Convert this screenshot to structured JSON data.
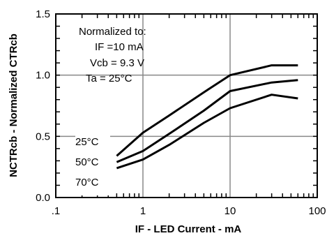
{
  "chart_data": {
    "type": "line",
    "x_scale": "log",
    "xlim": [
      0.1,
      100
    ],
    "ylim": [
      0,
      1.5
    ],
    "grid": true,
    "xlabel": "IF - LED Current - mA",
    "ylabel": "NCTRcb - Normalized CTRcb",
    "x_ticks": [
      {
        "value": 0.1,
        "label": ".1"
      },
      {
        "value": 1,
        "label": "1"
      },
      {
        "value": 10,
        "label": "10"
      },
      {
        "value": 100,
        "label": "100"
      }
    ],
    "y_ticks": [
      {
        "value": 0.0,
        "label": "0.0"
      },
      {
        "value": 0.5,
        "label": "0.5"
      },
      {
        "value": 1.0,
        "label": "1.0"
      },
      {
        "value": 1.5,
        "label": "1.5"
      }
    ],
    "annotation_lines": [
      "Normalized to:",
      "IF =10 mA",
      "Vcb = 9.3 V",
      "Ta = 25°C"
    ],
    "series": [
      {
        "name": "25°C",
        "x": [
          0.5,
          1,
          2,
          5,
          10,
          30,
          60
        ],
        "y": [
          0.34,
          0.53,
          0.67,
          0.86,
          1.0,
          1.08,
          1.08
        ]
      },
      {
        "name": "50°C",
        "x": [
          0.5,
          1,
          2,
          5,
          10,
          30,
          60
        ],
        "y": [
          0.29,
          0.38,
          0.52,
          0.71,
          0.87,
          0.94,
          0.96
        ]
      },
      {
        "name": "70°C",
        "x": [
          0.5,
          1,
          2,
          5,
          10,
          30,
          60
        ],
        "y": [
          0.24,
          0.31,
          0.43,
          0.61,
          0.73,
          0.84,
          0.81
        ]
      }
    ],
    "colors": {
      "line": "#000000",
      "grid": "#888888",
      "background": "#ffffff"
    }
  }
}
